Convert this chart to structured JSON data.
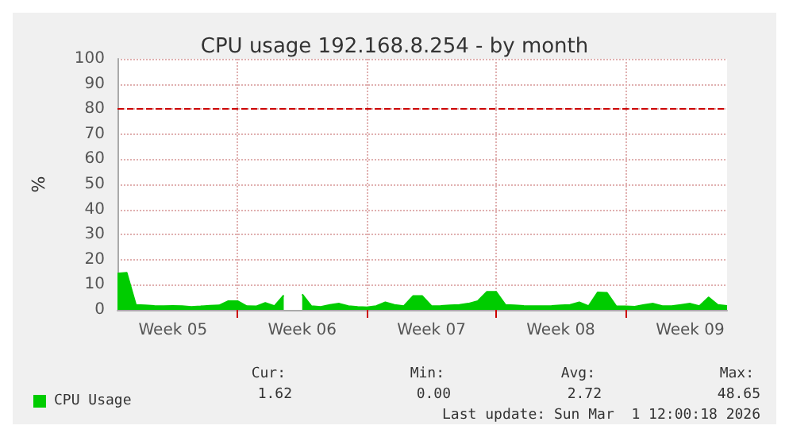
{
  "chart_data": {
    "type": "area",
    "title": "CPU usage 192.168.8.254 - by month",
    "ylabel": "%",
    "categories": [
      null,
      null,
      null,
      null,
      null,
      null,
      "Week 05",
      null,
      null,
      null,
      null,
      null,
      null,
      null,
      null,
      null,
      null,
      null,
      null,
      null,
      "Week 06",
      null,
      null,
      null,
      null,
      null,
      null,
      null,
      null,
      null,
      null,
      null,
      null,
      null,
      "Week 07",
      null,
      null,
      null,
      null,
      null,
      null,
      null,
      null,
      null,
      null,
      null,
      null,
      null,
      "Week 08",
      null,
      null,
      null,
      null,
      null,
      null,
      null,
      null,
      null,
      null,
      null,
      null,
      null,
      "Week 09",
      null,
      null,
      null,
      null
    ],
    "series": [
      {
        "name": "CPU Usage",
        "color": "#00cc00",
        "values": [
          14.5,
          14.8,
          2,
          1.8,
          1.6,
          1.5,
          1.6,
          1.5,
          1.2,
          1.4,
          1.7,
          1.8,
          3.5,
          3.5,
          1.5,
          1.4,
          2.8,
          1.5,
          5.8,
          null,
          6.2,
          1.5,
          1.2,
          2,
          2.5,
          1.5,
          1.2,
          1,
          1.5,
          3,
          2,
          1.5,
          5.5,
          5.5,
          1.5,
          1.6,
          1.8,
          2,
          2.5,
          3.5,
          7.2,
          7.2,
          2,
          1.8,
          1.6,
          1.5,
          1.5,
          1.6,
          1.8,
          2,
          3,
          1.5,
          7,
          6.8,
          1.5,
          1.4,
          1.3,
          2,
          2.5,
          1.5,
          1.5,
          2,
          2.5,
          1.5,
          5,
          2,
          1.6
        ]
      }
    ],
    "ylim": [
      0,
      100
    ],
    "yticks": [
      0,
      10,
      20,
      30,
      40,
      50,
      60,
      70,
      80,
      90,
      100
    ],
    "grid": true,
    "legend": "bottom left",
    "ref_lines": [
      {
        "axis": "y",
        "value": 80,
        "color": "#cc0000",
        "line_style": "dashed"
      }
    ],
    "annotations": [
      "Cur:",
      "1.62",
      "Min:",
      "0.00",
      "Avg:",
      "2.72",
      "Max:",
      "48.65",
      "Last update: Sun Mar  1 12:00:18 2026"
    ]
  }
}
